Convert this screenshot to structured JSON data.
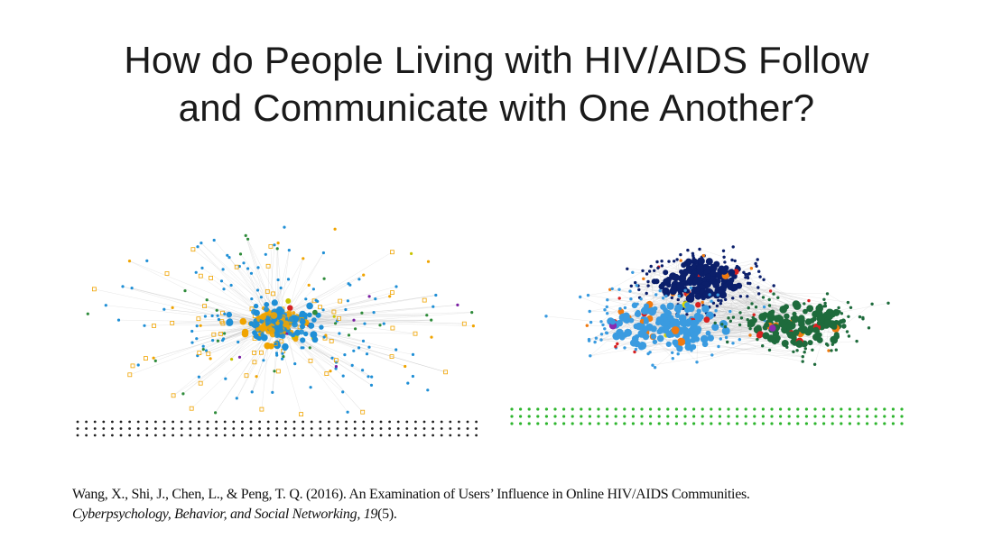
{
  "slide": {
    "title_line1": "How do People Living with HIV/AIDS Follow",
    "title_line2": "and Communicate with One Another?"
  },
  "citation": {
    "authors_title": "Wang, X., Shi, J., Chen, L., & Peng, T. Q. (2016). An Examination of Users’ Influence in Online HIV/AIDS Communities.",
    "journal": "Cyberpsychology, Behavior, and Social Networking,",
    "volume": " 19",
    "issue": "(5)."
  },
  "figures": {
    "left": {
      "isolate_color": "#222222",
      "node_colors": [
        "#1f8fd6",
        "#f0a400",
        "#2e8b3a",
        "#d42222",
        "#7a1fa2",
        "#c8c400"
      ],
      "edge_color": "#bbbbbb",
      "isolate_rows": 3,
      "isolate_cols": 47
    },
    "right": {
      "isolate_color": "#2db52d",
      "node_colors": [
        "#0b1f6b",
        "#3a9be0",
        "#1e6b3c",
        "#d82020",
        "#f07a10",
        "#8a2ab0",
        "#d6d600"
      ],
      "edge_color": "#bbbbbb",
      "isolate_rows": 3,
      "isolate_cols": 46
    }
  }
}
